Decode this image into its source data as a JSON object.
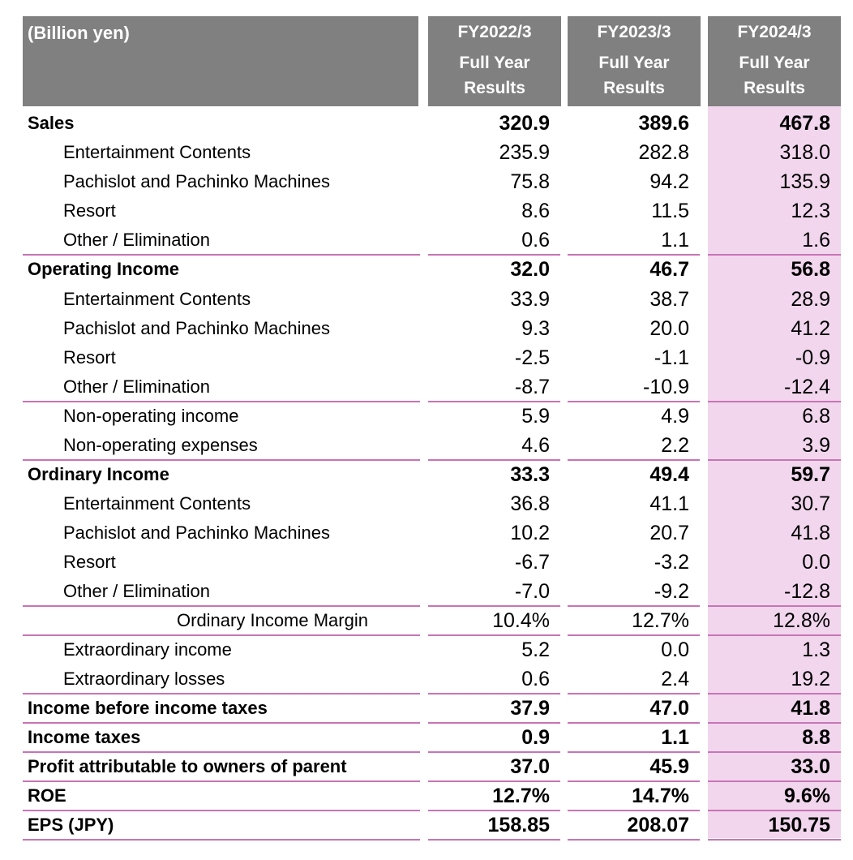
{
  "header": {
    "unit_label": "(Billion yen)",
    "columns": [
      {
        "year": "FY2022/3",
        "line2": "Full Year",
        "line3": "Results"
      },
      {
        "year": "FY2023/3",
        "line2": "Full Year",
        "line3": "Results"
      },
      {
        "year": "FY2024/3",
        "line2": "Full Year",
        "line3": "Results"
      }
    ],
    "header_bg": "#808080",
    "highlight_bg": "#f1d6ed",
    "rule_color": "#c874b6"
  },
  "rows": [
    {
      "label": "Sales",
      "style": "bold",
      "values": [
        "320.9",
        "389.6",
        "467.8"
      ]
    },
    {
      "label": "Entertainment Contents",
      "style": "sub",
      "values": [
        "235.9",
        "282.8",
        "318.0"
      ]
    },
    {
      "label": "Pachislot and Pachinko Machines",
      "style": "sub",
      "values": [
        "75.8",
        "94.2",
        "135.9"
      ]
    },
    {
      "label": "Resort",
      "style": "sub",
      "values": [
        "8.6",
        "11.5",
        "12.3"
      ]
    },
    {
      "label": "Other / Elimination",
      "style": "sub",
      "values": [
        "0.6",
        "1.1",
        "1.6"
      ]
    },
    {
      "label": "Operating Income",
      "style": "bold",
      "values": [
        "32.0",
        "46.7",
        "56.8"
      ]
    },
    {
      "label": "Entertainment Contents",
      "style": "sub",
      "values": [
        "33.9",
        "38.7",
        "28.9"
      ]
    },
    {
      "label": "Pachislot and Pachinko Machines",
      "style": "sub",
      "values": [
        "9.3",
        "20.0",
        "41.2"
      ]
    },
    {
      "label": "Resort",
      "style": "sub",
      "values": [
        "-2.5",
        "-1.1",
        "-0.9"
      ]
    },
    {
      "label": "Other / Elimination",
      "style": "sub",
      "values": [
        "-8.7",
        "-10.9",
        "-12.4"
      ]
    },
    {
      "label": "Non-operating income",
      "style": "sub",
      "values": [
        "5.9",
        "4.9",
        "6.8"
      ]
    },
    {
      "label": "Non-operating expenses",
      "style": "sub",
      "values": [
        "4.6",
        "2.2",
        "3.9"
      ]
    },
    {
      "label": "Ordinary Income",
      "style": "bold",
      "values": [
        "33.3",
        "49.4",
        "59.7"
      ]
    },
    {
      "label": "Entertainment Contents",
      "style": "sub",
      "values": [
        "36.8",
        "41.1",
        "30.7"
      ]
    },
    {
      "label": "Pachislot and Pachinko Machines",
      "style": "sub",
      "values": [
        "10.2",
        "20.7",
        "41.8"
      ]
    },
    {
      "label": "Resort",
      "style": "sub",
      "values": [
        "-6.7",
        "-3.2",
        "0.0"
      ]
    },
    {
      "label": "Other / Elimination",
      "style": "sub",
      "values": [
        "-7.0",
        "-9.2",
        "-12.8"
      ]
    },
    {
      "label": "Ordinary Income Margin",
      "style": "margin",
      "values": [
        "10.4%",
        "12.7%",
        "12.8%"
      ]
    },
    {
      "label": "Extraordinary income",
      "style": "sub",
      "values": [
        "5.2",
        "0.0",
        "1.3"
      ]
    },
    {
      "label": "Extraordinary losses",
      "style": "sub",
      "values": [
        "0.6",
        "2.4",
        "19.2"
      ]
    },
    {
      "label": "Income before income taxes",
      "style": "bold",
      "values": [
        "37.9",
        "47.0",
        "41.8"
      ]
    },
    {
      "label": "Income taxes",
      "style": "bold",
      "values": [
        "0.9",
        "1.1",
        "8.8"
      ]
    },
    {
      "label": "Profit attributable to owners of parent",
      "style": "bold",
      "values": [
        "37.0",
        "45.9",
        "33.0"
      ]
    },
    {
      "label": "ROE",
      "style": "bold",
      "values": [
        "12.7%",
        "14.7%",
        "9.6%"
      ]
    },
    {
      "label": "EPS (JPY)",
      "style": "bold",
      "values": [
        "158.85",
        "208.07",
        "150.75"
      ]
    }
  ]
}
